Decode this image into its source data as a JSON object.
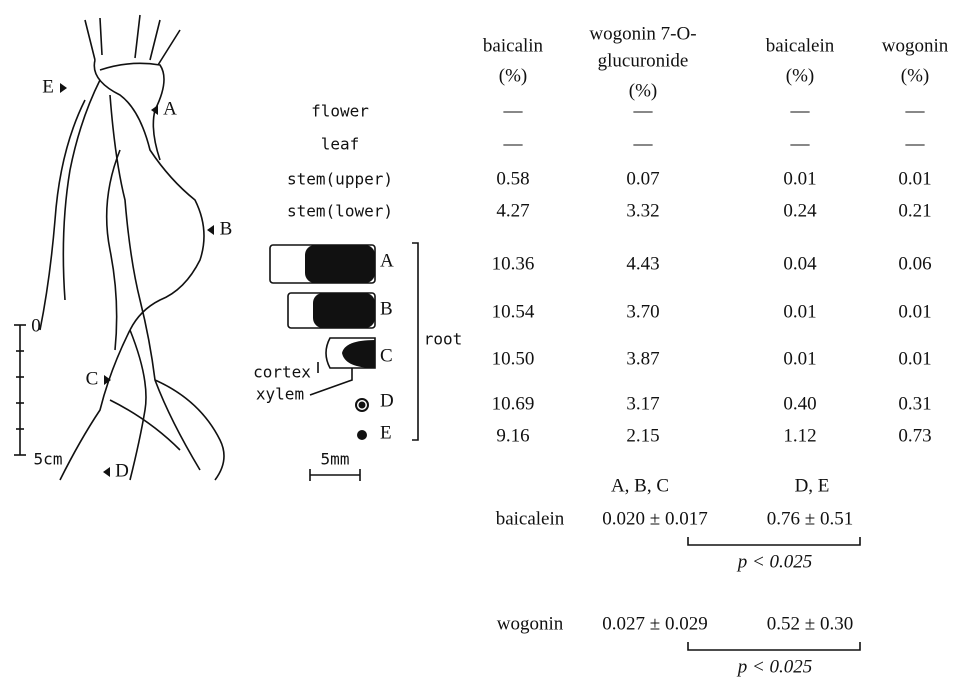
{
  "table": {
    "headers": [
      [
        "baicalin",
        "(%)"
      ],
      [
        "wogonin 7-O-",
        "glucuronide",
        "(%)"
      ],
      [
        "baicalein",
        "(%)"
      ],
      [
        "wogonin",
        "(%)"
      ]
    ],
    "rows": [
      {
        "label": "flower",
        "values": [
          "—",
          "—",
          "—",
          "—"
        ]
      },
      {
        "label": "leaf",
        "values": [
          "—",
          "—",
          "—",
          "—"
        ]
      },
      {
        "label": "stem(upper)",
        "values": [
          "0.58",
          "0.07",
          "0.01",
          "0.01"
        ]
      },
      {
        "label": "stem(lower)",
        "values": [
          "4.27",
          "3.32",
          "0.24",
          "0.21"
        ]
      },
      {
        "label": "A",
        "values": [
          "10.36",
          "4.43",
          "0.04",
          "0.06"
        ]
      },
      {
        "label": "B",
        "values": [
          "10.54",
          "3.70",
          "0.01",
          "0.01"
        ]
      },
      {
        "label": "C",
        "values": [
          "10.50",
          "3.87",
          "0.01",
          "0.01"
        ]
      },
      {
        "label": "D",
        "values": [
          "10.69",
          "3.17",
          "0.40",
          "0.31"
        ]
      },
      {
        "label": "E",
        "values": [
          "9.16",
          "2.15",
          "1.12",
          "0.73"
        ]
      }
    ],
    "group_label": "root"
  },
  "diagram": {
    "labels": [
      "E",
      "A",
      "B",
      "C",
      "D"
    ],
    "scale_top": "0",
    "scale_bottom": "5cm",
    "cortex": "cortex",
    "xylem": "xylem",
    "section_scale": "5mm"
  },
  "stats": {
    "groups": [
      "A, B, C",
      "D, E"
    ],
    "rows": [
      {
        "label": "baicalein",
        "values": [
          "0.020 ± 0.017",
          "0.76 ± 0.51"
        ],
        "p": "p < 0.025"
      },
      {
        "label": "wogonin",
        "values": [
          "0.027 ± 0.029",
          "0.52 ± 0.30"
        ],
        "p": "p < 0.025"
      }
    ]
  }
}
